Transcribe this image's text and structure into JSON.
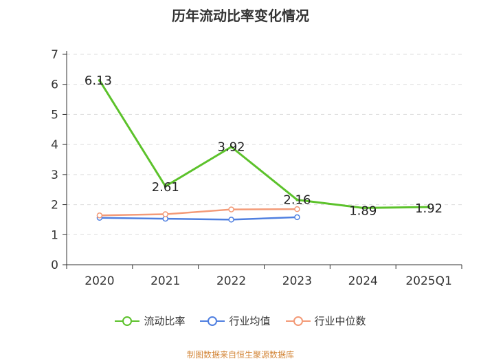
{
  "chart_data": {
    "type": "line",
    "title": "历年流动比率变化情况",
    "categories": [
      "2020",
      "2021",
      "2022",
      "2023",
      "2024",
      "2025Q1"
    ],
    "ylim": [
      0,
      7
    ],
    "yticks": [
      "0",
      "1",
      "2",
      "3",
      "4",
      "5",
      "6",
      "7"
    ],
    "grid": true,
    "legend_position": "bottom",
    "series": [
      {
        "name": "流动比率",
        "color": "#5cc22b",
        "values": [
          6.13,
          2.61,
          3.92,
          2.16,
          1.89,
          1.92
        ],
        "labels": [
          "6.13",
          "2.61",
          "3.92",
          "2.16",
          "1.89",
          "1.92"
        ]
      },
      {
        "name": "行业均值",
        "color": "#4f7fe0",
        "values": [
          1.56,
          1.53,
          1.5,
          1.58,
          null,
          null
        ]
      },
      {
        "name": "行业中位数",
        "color": "#f39a77",
        "values": [
          1.64,
          1.68,
          1.84,
          1.85,
          null,
          null
        ]
      }
    ]
  },
  "footer": {
    "source": "制图数据来自恒生聚源数据库"
  }
}
